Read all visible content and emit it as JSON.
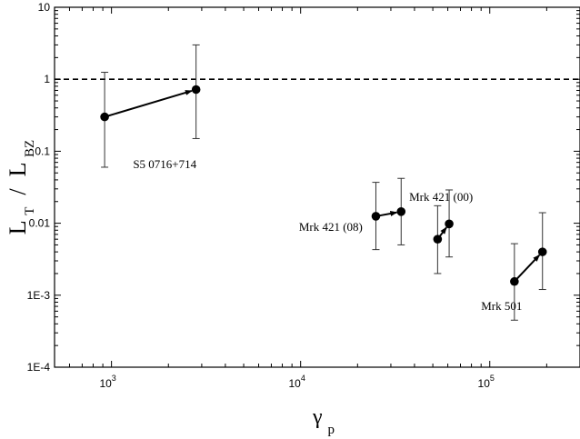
{
  "chart_data": {
    "type": "scatter",
    "x_scale": "log",
    "y_scale": "log",
    "xlim": [
      500,
      300000
    ],
    "ylim": [
      0.0001,
      10
    ],
    "x_ticks": [
      {
        "value": 1000,
        "mantissa": "10",
        "exp": "3"
      },
      {
        "value": 10000,
        "mantissa": "10",
        "exp": "4"
      },
      {
        "value": 100000,
        "mantissa": "10",
        "exp": "5"
      }
    ],
    "y_ticks": [
      {
        "value": 10,
        "label": "10"
      },
      {
        "value": 1,
        "label": "1"
      },
      {
        "value": 0.1,
        "label": "0.1"
      },
      {
        "value": 0.01,
        "label": "0.01"
      },
      {
        "value": 0.001,
        "label": "1E-3"
      },
      {
        "value": 0.0001,
        "label": "1E-4"
      }
    ],
    "xlabel": {
      "main": "γ",
      "sub": "p"
    },
    "ylabel": {
      "p1": "L",
      "s1": "T",
      "mid": " / ",
      "p2": "L",
      "s2": "BZ"
    },
    "reference_line": {
      "y": 1,
      "style": "dashed"
    },
    "grid": false,
    "series": [
      {
        "name": "S5 0716+714",
        "points": [
          {
            "x": 920,
            "y": 0.3,
            "ylo": 0.06,
            "yhi": 1.25
          },
          {
            "x": 2800,
            "y": 0.72,
            "ylo": 0.15,
            "yhi": 3.0
          }
        ]
      },
      {
        "name": "Mrk 421 (08)",
        "points": [
          {
            "x": 25000,
            "y": 0.0125,
            "ylo": 0.0043,
            "yhi": 0.037
          },
          {
            "x": 34000,
            "y": 0.0145,
            "ylo": 0.005,
            "yhi": 0.042
          }
        ]
      },
      {
        "name": "Mrk 421 (00)",
        "points": [
          {
            "x": 53000,
            "y": 0.006,
            "ylo": 0.002,
            "yhi": 0.0175
          },
          {
            "x": 61000,
            "y": 0.0098,
            "ylo": 0.0034,
            "yhi": 0.029
          }
        ]
      },
      {
        "name": "Mrk 501",
        "points": [
          {
            "x": 135000,
            "y": 0.00155,
            "ylo": 0.00045,
            "yhi": 0.0052
          },
          {
            "x": 190000,
            "y": 0.004,
            "ylo": 0.0012,
            "yhi": 0.014
          }
        ]
      }
    ],
    "annotations": [
      {
        "text": "S5 0716+714",
        "x": 1300,
        "y": 0.058
      },
      {
        "text": "Mrk 421 (08)",
        "x": 9800,
        "y": 0.0078
      },
      {
        "text": "Mrk 421 (00)",
        "x": 37500,
        "y": 0.0205
      },
      {
        "text": "Mrk 501",
        "x": 90000,
        "y": 0.00062
      }
    ]
  }
}
